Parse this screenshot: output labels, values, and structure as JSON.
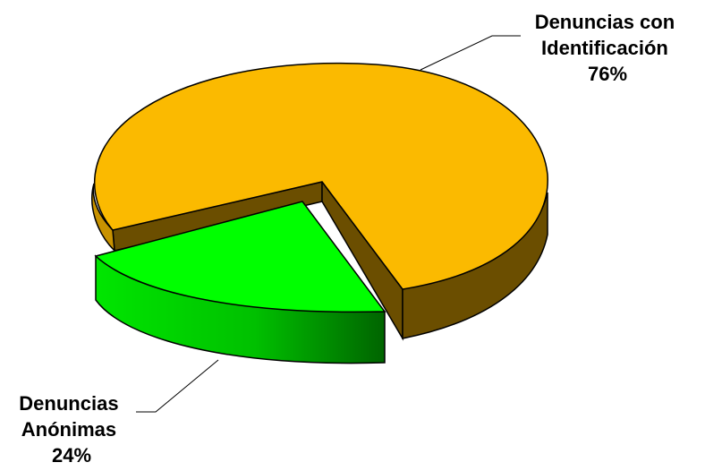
{
  "chart_data": {
    "type": "pie",
    "style": "3d-exploded",
    "legend": "none",
    "slices": [
      {
        "label_lines": [
          "Denuncias con",
          "Identificación",
          "76%"
        ],
        "value": 76,
        "color": "#FBBA00",
        "side_color": "#6B4E00"
      },
      {
        "label_lines": [
          "Denuncias",
          "Anónimas",
          "24%"
        ],
        "value": 24,
        "color": "#00FF00",
        "side_color": "#007A00"
      }
    ]
  }
}
